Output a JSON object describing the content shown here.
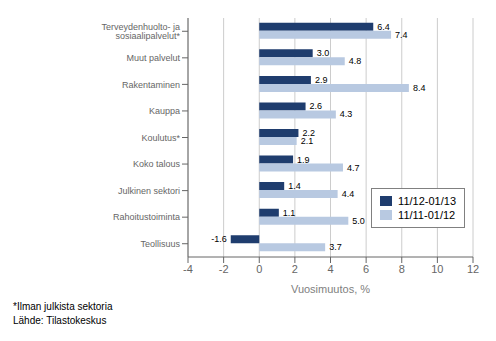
{
  "chart_data": {
    "type": "bar",
    "orientation": "horizontal",
    "categories": [
      "Teollisuus",
      "Rahoitustoiminta",
      "Julkinen sektori",
      "Koko talous",
      "Koulutus*",
      "Kauppa",
      "Rakentaminen",
      "Muut palvelut",
      "Terveydenhuolto- ja sosiaalipalvelut*"
    ],
    "series": [
      {
        "name": "11/12-01/13",
        "color": "#1F3D6E",
        "values": [
          -1.6,
          1.1,
          1.4,
          1.9,
          2.2,
          2.6,
          2.9,
          3.0,
          6.4
        ],
        "value_labels": [
          "-1.6",
          "1.1",
          "1.4",
          "1.9",
          "2.2",
          "2.6",
          "2.9",
          "3.0",
          "6.4"
        ]
      },
      {
        "name": "11/11-01/12",
        "color": "#B8C9E1",
        "values": [
          3.7,
          5.0,
          4.4,
          4.7,
          2.1,
          4.3,
          8.4,
          4.8,
          7.4
        ],
        "value_labels": [
          "3.7",
          "5.0",
          "4.4",
          "4.7",
          "2.1",
          "4.3",
          "8.4",
          "4.8",
          "7.4"
        ]
      }
    ],
    "xlabel": "Vuosimuutos, %",
    "xlim": [
      -4,
      12
    ],
    "xticks": [
      -4,
      -2,
      0,
      2,
      4,
      6,
      8,
      10,
      12
    ],
    "grid": true,
    "legend": "lower right",
    "data_labels": true,
    "annotations": [
      "*Ilman julkista sektoria",
      "Lähde: Tilastokeskus"
    ]
  }
}
